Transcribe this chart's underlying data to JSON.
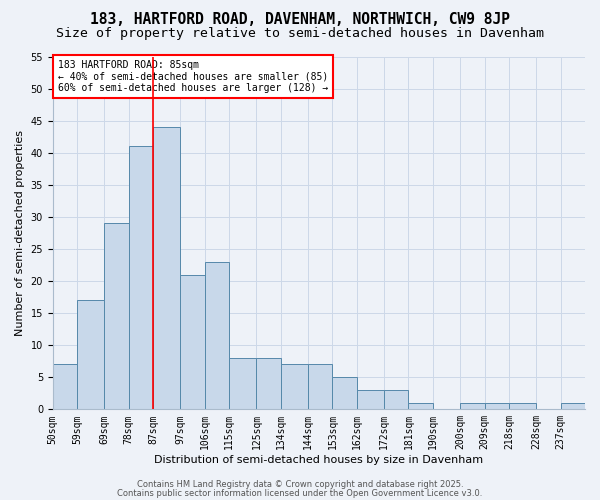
{
  "title1": "183, HARTFORD ROAD, DAVENHAM, NORTHWICH, CW9 8JP",
  "title2": "Size of property relative to semi-detached houses in Davenham",
  "xlabel": "Distribution of semi-detached houses by size in Davenham",
  "ylabel": "Number of semi-detached properties",
  "bin_labels": [
    "50sqm",
    "59sqm",
    "69sqm",
    "78sqm",
    "87sqm",
    "97sqm",
    "106sqm",
    "115sqm",
    "125sqm",
    "134sqm",
    "144sqm",
    "153sqm",
    "162sqm",
    "172sqm",
    "181sqm",
    "190sqm",
    "200sqm",
    "209sqm",
    "218sqm",
    "228sqm",
    "237sqm"
  ],
  "bin_edges": [
    50,
    59,
    69,
    78,
    87,
    97,
    106,
    115,
    125,
    134,
    144,
    153,
    162,
    172,
    181,
    190,
    200,
    209,
    218,
    228,
    237,
    246
  ],
  "values": [
    7,
    17,
    29,
    41,
    44,
    21,
    23,
    8,
    8,
    7,
    7,
    5,
    3,
    3,
    1,
    0,
    1,
    1,
    1,
    0,
    1
  ],
  "bar_color": "#c8d8ea",
  "bar_edge_color": "#5588aa",
  "grid_color": "#ccd8e8",
  "background_color": "#eef2f8",
  "vline_x": 87,
  "vline_color": "red",
  "annotation_text": "183 HARTFORD ROAD: 85sqm\n← 40% of semi-detached houses are smaller (85)\n60% of semi-detached houses are larger (128) →",
  "annotation_box_color": "white",
  "annotation_box_edge": "red",
  "ylim": [
    0,
    55
  ],
  "yticks": [
    0,
    5,
    10,
    15,
    20,
    25,
    30,
    35,
    40,
    45,
    50,
    55
  ],
  "footer1": "Contains HM Land Registry data © Crown copyright and database right 2025.",
  "footer2": "Contains public sector information licensed under the Open Government Licence v3.0.",
  "title1_fontsize": 10.5,
  "title2_fontsize": 9.5,
  "axis_fontsize": 8,
  "tick_fontsize": 7,
  "annotation_fontsize": 7,
  "footer_fontsize": 6
}
